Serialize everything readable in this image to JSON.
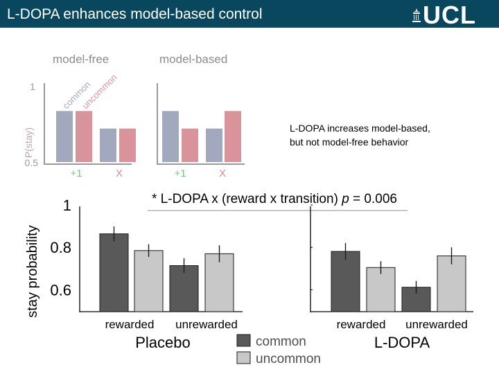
{
  "header": {
    "title": "L-DOPA enhances model-based control",
    "logo": "UCL"
  },
  "note": {
    "line1": "L-DOPA increases model-based,",
    "line2": "but not model-free behavior"
  },
  "colors": {
    "header_bg": "#08475e",
    "pred_common": "#a2a8bd",
    "pred_uncommon": "#d9949b",
    "pred_axis": "#999999",
    "pred_tick_green": "#7bc48a",
    "pred_tick_red": "#dc8a90",
    "data_common": "#595959",
    "data_uncommon": "#c8c8c8"
  },
  "chart_data": [
    {
      "id": "prediction",
      "type": "bar",
      "ylabel": "P(stay)",
      "ylim": [
        0.5,
        1
      ],
      "ytick_labels": [
        "1",
        "0.5"
      ],
      "legend": [
        "common",
        "uncommon"
      ],
      "panels": [
        {
          "title": "model-free",
          "categories": [
            "+1",
            "X"
          ],
          "series": [
            {
              "name": "common",
              "values": [
                0.835,
                0.72
              ]
            },
            {
              "name": "uncommon",
              "values": [
                0.835,
                0.72
              ]
            }
          ]
        },
        {
          "title": "model-based",
          "categories": [
            "+1",
            "X"
          ],
          "series": [
            {
              "name": "common",
              "values": [
                0.835,
                0.72
              ]
            },
            {
              "name": "uncommon",
              "values": [
                0.72,
                0.835
              ]
            }
          ]
        }
      ]
    },
    {
      "id": "results",
      "type": "bar",
      "ylabel": "stay probability",
      "ylim": [
        0.5,
        1
      ],
      "yticks": [
        1,
        0.8,
        0.6
      ],
      "ytick_labels": [
        "1",
        "0.8",
        "0.6"
      ],
      "annotation": {
        "prefix": "* L-DOPA x (reward x transition)",
        "p_label": "p",
        "p_value": " = 0.006"
      },
      "legend": [
        {
          "name": "common",
          "color": "#595959"
        },
        {
          "name": "uncommon",
          "color": "#c8c8c8"
        }
      ],
      "panels": [
        {
          "title": "Placebo",
          "categories": [
            "rewarded",
            "unrewarded"
          ],
          "series": [
            {
              "name": "common",
              "values": [
                0.864,
                0.714
              ],
              "err": [
                0.035,
                0.035
              ]
            },
            {
              "name": "uncommon",
              "values": [
                0.785,
                0.77
              ],
              "err": [
                0.03,
                0.04
              ]
            }
          ]
        },
        {
          "title": "L-DOPA",
          "categories": [
            "rewarded",
            "unrewarded"
          ],
          "series": [
            {
              "name": "common",
              "values": [
                0.781,
                0.612
              ],
              "err": [
                0.04,
                0.03
              ]
            },
            {
              "name": "uncommon",
              "values": [
                0.705,
                0.76
              ],
              "err": [
                0.03,
                0.04
              ]
            }
          ]
        }
      ]
    }
  ]
}
